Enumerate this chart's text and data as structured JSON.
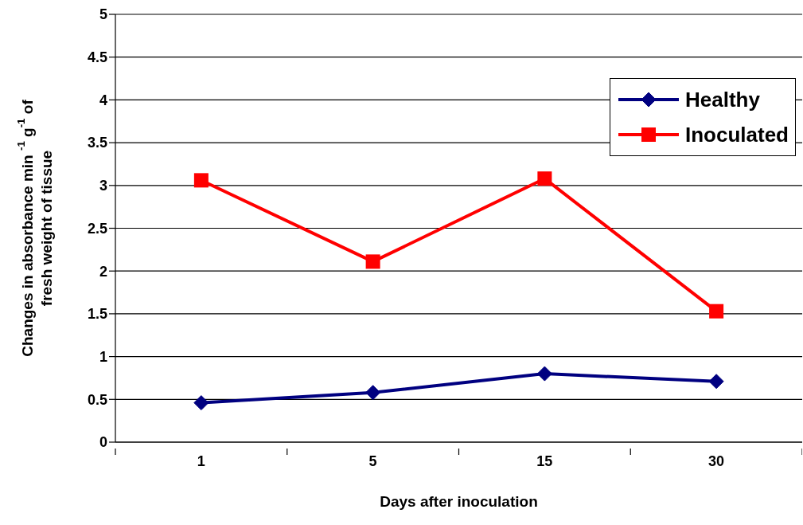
{
  "chart_data": {
    "type": "line",
    "xlabel": "Days after inoculation",
    "ylabel": "Changes in absorbance min $^{-1}$ g$^{-1}$ of fresh weight of tissue",
    "categories": [
      "1",
      "5",
      "15",
      "30"
    ],
    "series": [
      {
        "name": "Healthy",
        "color": "#000080",
        "marker": "diamond",
        "values": [
          0.46,
          0.58,
          0.8,
          0.71
        ]
      },
      {
        "name": "Inoculated",
        "color": "#ff0000",
        "marker": "square",
        "values": [
          3.06,
          2.11,
          3.08,
          1.53
        ]
      }
    ],
    "ylim": [
      0,
      5
    ],
    "yticks": [
      0,
      0.5,
      1,
      1.5,
      2,
      2.5,
      3,
      3.5,
      4,
      4.5,
      5
    ],
    "grid": "y",
    "legend": "top right",
    "line_style": "solid"
  }
}
